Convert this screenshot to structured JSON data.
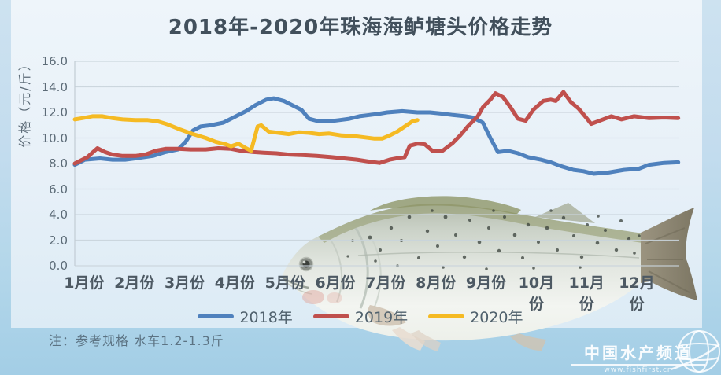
{
  "title": "2018年-2020年珠海海鲈塘头价格走势",
  "y_axis": {
    "label": "价格（元/斤）",
    "ticks": [
      "16.0",
      "14.0",
      "12.0",
      "10.0",
      "8.0",
      "6.0",
      "4.0",
      "2.0",
      "0.0"
    ],
    "min": 0,
    "max": 16,
    "step": 2
  },
  "x_axis": {
    "labels": [
      "1月份",
      "2月份",
      "3月份",
      "4月份",
      "5月份",
      "6月份",
      "7月份",
      "8月份",
      "9月份",
      "10月份",
      "11月份",
      "12月份"
    ]
  },
  "legend": [
    {
      "label": "2018年",
      "color": "#4F81BD"
    },
    {
      "label": "2019年",
      "color": "#C0504D"
    },
    {
      "label": "2020年",
      "color": "#F5BA23"
    }
  ],
  "note": "注：参考规格  水车1.2-1.3斤",
  "watermark": {
    "name": "中国水产频道",
    "url": "www.fishfirst.cn"
  },
  "chart_data": {
    "type": "line",
    "title": "2018年-2020年珠海海鲈塘头价格走势",
    "xlabel": "",
    "ylabel": "价格（元/斤）",
    "ylim": [
      0,
      16
    ],
    "y_step": 2,
    "grid": true,
    "legend_position": "bottom",
    "x_unit": "month: 1.0 = 1月份 start … 13.0 = end of 12月份 (fractional x = weeks within month)",
    "unit": "元/斤",
    "series": [
      {
        "name": "2018年",
        "color": "#4F81BD",
        "points": [
          [
            1.0,
            7.9
          ],
          [
            1.2,
            8.3
          ],
          [
            1.5,
            8.4
          ],
          [
            1.75,
            8.3
          ],
          [
            2.0,
            8.3
          ],
          [
            2.2,
            8.4
          ],
          [
            2.55,
            8.6
          ],
          [
            2.8,
            8.9
          ],
          [
            3.05,
            9.1
          ],
          [
            3.2,
            9.7
          ],
          [
            3.35,
            10.6
          ],
          [
            3.5,
            10.9
          ],
          [
            3.7,
            11.0
          ],
          [
            3.95,
            11.2
          ],
          [
            4.1,
            11.5
          ],
          [
            4.4,
            12.1
          ],
          [
            4.6,
            12.6
          ],
          [
            4.8,
            13.0
          ],
          [
            4.95,
            13.1
          ],
          [
            5.15,
            12.9
          ],
          [
            5.35,
            12.5
          ],
          [
            5.5,
            12.2
          ],
          [
            5.65,
            11.5
          ],
          [
            5.85,
            11.3
          ],
          [
            6.05,
            11.3
          ],
          [
            6.25,
            11.4
          ],
          [
            6.45,
            11.5
          ],
          [
            6.65,
            11.7
          ],
          [
            6.85,
            11.8
          ],
          [
            7.05,
            11.9
          ],
          [
            7.2,
            12.0
          ],
          [
            7.5,
            12.1
          ],
          [
            7.8,
            12.0
          ],
          [
            8.05,
            12.0
          ],
          [
            8.3,
            11.9
          ],
          [
            8.5,
            11.8
          ],
          [
            8.75,
            11.7
          ],
          [
            8.9,
            11.6
          ],
          [
            9.1,
            11.2
          ],
          [
            9.25,
            10.0
          ],
          [
            9.4,
            8.9
          ],
          [
            9.6,
            9.0
          ],
          [
            9.8,
            8.8
          ],
          [
            10.0,
            8.5
          ],
          [
            10.25,
            8.3
          ],
          [
            10.45,
            8.1
          ],
          [
            10.65,
            7.8
          ],
          [
            10.9,
            7.5
          ],
          [
            11.1,
            7.4
          ],
          [
            11.3,
            7.2
          ],
          [
            11.6,
            7.3
          ],
          [
            11.9,
            7.5
          ],
          [
            12.2,
            7.6
          ],
          [
            12.4,
            7.9
          ],
          [
            12.7,
            8.05
          ],
          [
            12.98,
            8.1
          ]
        ]
      },
      {
        "name": "2019年",
        "color": "#C0504D",
        "points": [
          [
            1.0,
            8.0
          ],
          [
            1.25,
            8.5
          ],
          [
            1.45,
            9.2
          ],
          [
            1.6,
            8.9
          ],
          [
            1.75,
            8.7
          ],
          [
            1.95,
            8.6
          ],
          [
            2.2,
            8.6
          ],
          [
            2.4,
            8.7
          ],
          [
            2.6,
            9.0
          ],
          [
            2.8,
            9.15
          ],
          [
            3.05,
            9.15
          ],
          [
            3.3,
            9.1
          ],
          [
            3.6,
            9.1
          ],
          [
            3.85,
            9.2
          ],
          [
            4.1,
            9.15
          ],
          [
            4.3,
            9.0
          ],
          [
            4.55,
            8.9
          ],
          [
            4.75,
            8.85
          ],
          [
            5.0,
            8.8
          ],
          [
            5.25,
            8.7
          ],
          [
            5.55,
            8.65
          ],
          [
            5.8,
            8.6
          ],
          [
            6.1,
            8.5
          ],
          [
            6.35,
            8.4
          ],
          [
            6.6,
            8.3
          ],
          [
            6.85,
            8.15
          ],
          [
            7.05,
            8.05
          ],
          [
            7.25,
            8.3
          ],
          [
            7.45,
            8.45
          ],
          [
            7.55,
            8.5
          ],
          [
            7.65,
            9.4
          ],
          [
            7.8,
            9.55
          ],
          [
            7.95,
            9.5
          ],
          [
            8.1,
            9.0
          ],
          [
            8.3,
            9.0
          ],
          [
            8.5,
            9.6
          ],
          [
            8.65,
            10.2
          ],
          [
            8.8,
            10.9
          ],
          [
            9.0,
            11.7
          ],
          [
            9.1,
            12.4
          ],
          [
            9.25,
            13.0
          ],
          [
            9.35,
            13.5
          ],
          [
            9.5,
            13.2
          ],
          [
            9.65,
            12.4
          ],
          [
            9.8,
            11.5
          ],
          [
            9.95,
            11.35
          ],
          [
            10.1,
            12.2
          ],
          [
            10.3,
            12.9
          ],
          [
            10.45,
            13.0
          ],
          [
            10.55,
            12.9
          ],
          [
            10.7,
            13.6
          ],
          [
            10.85,
            12.8
          ],
          [
            11.0,
            12.3
          ],
          [
            11.15,
            11.6
          ],
          [
            11.25,
            11.1
          ],
          [
            11.45,
            11.4
          ],
          [
            11.65,
            11.7
          ],
          [
            11.85,
            11.45
          ],
          [
            12.1,
            11.7
          ],
          [
            12.4,
            11.55
          ],
          [
            12.7,
            11.6
          ],
          [
            12.98,
            11.55
          ]
        ]
      },
      {
        "name": "2020年",
        "color": "#F5BA23",
        "points": [
          [
            1.0,
            11.45
          ],
          [
            1.15,
            11.55
          ],
          [
            1.35,
            11.7
          ],
          [
            1.55,
            11.7
          ],
          [
            1.75,
            11.55
          ],
          [
            1.95,
            11.45
          ],
          [
            2.2,
            11.4
          ],
          [
            2.45,
            11.4
          ],
          [
            2.65,
            11.3
          ],
          [
            2.85,
            11.05
          ],
          [
            3.1,
            10.65
          ],
          [
            3.35,
            10.3
          ],
          [
            3.6,
            10.0
          ],
          [
            3.8,
            9.7
          ],
          [
            4.0,
            9.5
          ],
          [
            4.1,
            9.35
          ],
          [
            4.25,
            9.55
          ],
          [
            4.4,
            9.2
          ],
          [
            4.5,
            9.0
          ],
          [
            4.63,
            10.9
          ],
          [
            4.7,
            11.0
          ],
          [
            4.85,
            10.5
          ],
          [
            5.05,
            10.4
          ],
          [
            5.25,
            10.3
          ],
          [
            5.45,
            10.45
          ],
          [
            5.65,
            10.4
          ],
          [
            5.85,
            10.3
          ],
          [
            6.05,
            10.35
          ],
          [
            6.3,
            10.2
          ],
          [
            6.55,
            10.15
          ],
          [
            6.75,
            10.05
          ],
          [
            6.95,
            9.95
          ],
          [
            7.1,
            9.95
          ],
          [
            7.25,
            10.2
          ],
          [
            7.4,
            10.5
          ],
          [
            7.55,
            10.9
          ],
          [
            7.7,
            11.3
          ],
          [
            7.8,
            11.4
          ]
        ]
      }
    ]
  }
}
